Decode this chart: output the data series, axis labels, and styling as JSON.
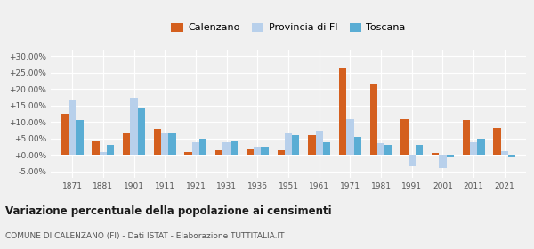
{
  "years": [
    1871,
    1881,
    1901,
    1911,
    1921,
    1931,
    1936,
    1951,
    1961,
    1971,
    1981,
    1991,
    2001,
    2011,
    2021
  ],
  "calenzano": [
    12.5,
    4.5,
    6.5,
    7.8,
    1.0,
    1.5,
    2.0,
    1.5,
    6.0,
    26.5,
    21.5,
    11.0,
    0.5,
    10.5,
    8.3
  ],
  "provincia_fi": [
    16.8,
    1.0,
    17.5,
    6.5,
    4.0,
    4.0,
    2.5,
    6.5,
    7.5,
    11.0,
    3.5,
    -3.5,
    -4.0,
    4.0,
    1.2
  ],
  "toscana": [
    10.5,
    3.0,
    14.5,
    6.5,
    5.0,
    4.5,
    2.5,
    6.0,
    4.0,
    5.5,
    3.0,
    3.0,
    -0.5,
    5.0,
    -0.5
  ],
  "color_calenzano": "#d45f1e",
  "color_provincia": "#b8d0eb",
  "color_toscana": "#5aadd4",
  "title": "Variazione percentuale della popolazione ai censimenti",
  "subtitle": "COMUNE DI CALENZANO (FI) - Dati ISTAT - Elaborazione TUTTITALIA.IT",
  "ylim": [
    -7,
    32
  ],
  "yticks": [
    -5.0,
    0.0,
    5.0,
    10.0,
    15.0,
    20.0,
    25.0,
    30.0
  ],
  "legend_labels": [
    "Calenzano",
    "Provincia di FI",
    "Toscana"
  ],
  "background_color": "#f0f0f0"
}
